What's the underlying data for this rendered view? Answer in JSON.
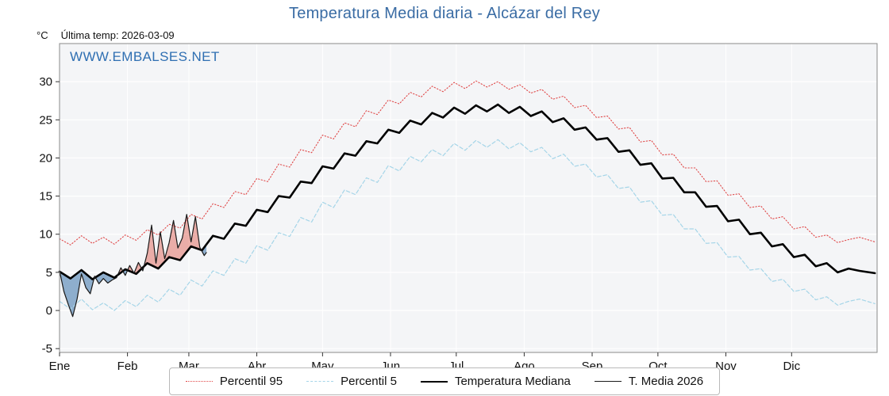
{
  "title": "Temperatura Media diaria - Alcázar del Rey",
  "header": {
    "unit": "°C",
    "last_temp": "Última temp: 2026-03-09"
  },
  "watermark": "WWW.EMBALSES.NET",
  "colors": {
    "title": "#3a6ca4",
    "watermark": "#2f6fb2",
    "plot_bg": "#f4f5f7",
    "grid": "#ffffff",
    "frame": "#8a8a8a",
    "tick": "#333333",
    "tick_label": "#111111"
  },
  "chart_data": {
    "type": "line",
    "title": "Temperatura Media diaria - Alcázar del Rey",
    "xlabel": "",
    "ylabel": "°C",
    "xlim": [
      1,
      374
    ],
    "ylim": [
      -5.5,
      35
    ],
    "yticks": [
      -5,
      0,
      5,
      10,
      15,
      20,
      25,
      30
    ],
    "xticks": {
      "labels": [
        "Ene",
        "Feb",
        "Mar",
        "Abr",
        "May",
        "Jun",
        "Jul",
        "Ago",
        "Sep",
        "Oct",
        "Nov",
        "Dic"
      ],
      "days": [
        1,
        32,
        60,
        91,
        121,
        152,
        182,
        213,
        244,
        274,
        305,
        335
      ]
    },
    "grid": true,
    "series": [
      {
        "name": "Percentil 95",
        "color": "#e04848",
        "style": "dotted",
        "width": 1.1,
        "x": [
          1,
          6,
          11,
          16,
          21,
          26,
          31,
          36,
          41,
          46,
          51,
          56,
          61,
          66,
          71,
          76,
          81,
          86,
          91,
          96,
          101,
          106,
          111,
          116,
          121,
          126,
          131,
          136,
          141,
          146,
          151,
          156,
          161,
          166,
          171,
          176,
          181,
          186,
          191,
          196,
          201,
          206,
          211,
          216,
          221,
          226,
          231,
          236,
          241,
          246,
          251,
          256,
          261,
          266,
          271,
          276,
          281,
          286,
          291,
          296,
          301,
          306,
          311,
          316,
          321,
          326,
          331,
          336,
          341,
          346,
          351,
          356,
          361,
          366,
          373
        ],
        "y": [
          9.4,
          8.6,
          9.8,
          8.8,
          9.6,
          8.7,
          9.9,
          9.2,
          10.6,
          9.9,
          11.3,
          10.8,
          12.6,
          12.0,
          14.0,
          13.5,
          15.6,
          15.2,
          17.3,
          16.9,
          19.2,
          18.8,
          21.1,
          20.7,
          23.0,
          22.5,
          24.6,
          24.1,
          26.2,
          25.7,
          27.6,
          27.1,
          28.6,
          28.0,
          29.4,
          28.7,
          29.9,
          29.1,
          30.1,
          29.3,
          30.0,
          29.0,
          29.6,
          28.5,
          29.0,
          27.7,
          28.1,
          26.6,
          26.9,
          25.3,
          25.5,
          23.8,
          24.0,
          22.1,
          22.3,
          20.4,
          20.5,
          18.7,
          18.7,
          16.9,
          17.0,
          15.1,
          15.3,
          13.5,
          13.7,
          12.0,
          12.3,
          10.7,
          11.0,
          9.6,
          9.9,
          8.9,
          9.3,
          9.6,
          9.0
        ]
      },
      {
        "name": "Percentil 5",
        "color": "#a5d5e8",
        "style": "dashed",
        "width": 1.2,
        "x": [
          1,
          6,
          11,
          16,
          21,
          26,
          31,
          36,
          41,
          46,
          51,
          56,
          61,
          66,
          71,
          76,
          81,
          86,
          91,
          96,
          101,
          106,
          111,
          116,
          121,
          126,
          131,
          136,
          141,
          146,
          151,
          156,
          161,
          166,
          171,
          176,
          181,
          186,
          191,
          196,
          201,
          206,
          211,
          216,
          221,
          226,
          231,
          236,
          241,
          246,
          251,
          256,
          261,
          266,
          271,
          276,
          281,
          286,
          291,
          296,
          301,
          306,
          311,
          316,
          321,
          326,
          331,
          336,
          341,
          346,
          351,
          356,
          361,
          366,
          373
        ],
        "y": [
          1.2,
          0.2,
          1.5,
          0.1,
          1.0,
          0.0,
          1.3,
          0.5,
          2.0,
          1.1,
          2.8,
          2.0,
          4.0,
          3.2,
          5.2,
          4.6,
          6.8,
          6.2,
          8.5,
          7.9,
          10.2,
          9.7,
          12.2,
          11.6,
          14.2,
          13.5,
          15.8,
          15.2,
          17.4,
          16.8,
          19.0,
          18.3,
          20.2,
          19.5,
          21.1,
          20.3,
          21.9,
          21.0,
          22.3,
          21.4,
          22.4,
          21.2,
          22.0,
          20.8,
          21.4,
          19.9,
          20.5,
          18.9,
          19.2,
          17.5,
          17.8,
          16.0,
          16.2,
          14.2,
          14.4,
          12.5,
          12.6,
          10.7,
          10.7,
          8.8,
          8.9,
          7.0,
          7.1,
          5.3,
          5.5,
          3.8,
          4.1,
          2.5,
          2.8,
          1.4,
          1.8,
          0.7,
          1.2,
          1.5,
          0.9
        ]
      },
      {
        "name": "Temperatura Mediana",
        "color": "#000000",
        "style": "solid",
        "width": 2.6,
        "x": [
          1,
          6,
          11,
          16,
          21,
          26,
          31,
          36,
          41,
          46,
          51,
          56,
          61,
          66,
          71,
          76,
          81,
          86,
          91,
          96,
          101,
          106,
          111,
          116,
          121,
          126,
          131,
          136,
          141,
          146,
          151,
          156,
          161,
          166,
          171,
          176,
          181,
          186,
          191,
          196,
          201,
          206,
          211,
          216,
          221,
          226,
          231,
          236,
          241,
          246,
          251,
          256,
          261,
          266,
          271,
          276,
          281,
          286,
          291,
          296,
          301,
          306,
          311,
          316,
          321,
          326,
          331,
          336,
          341,
          346,
          351,
          356,
          361,
          366,
          373
        ],
        "y": [
          5.1,
          4.2,
          5.3,
          4.1,
          5.0,
          4.3,
          5.4,
          4.8,
          6.2,
          5.5,
          7.0,
          6.6,
          8.4,
          7.9,
          9.8,
          9.4,
          11.4,
          11.1,
          13.2,
          12.9,
          15.0,
          14.8,
          16.9,
          16.7,
          18.9,
          18.6,
          20.6,
          20.3,
          22.2,
          21.9,
          23.7,
          23.3,
          24.9,
          24.4,
          25.9,
          25.3,
          26.6,
          25.8,
          26.9,
          26.1,
          27.0,
          25.9,
          26.7,
          25.5,
          26.1,
          24.7,
          25.2,
          23.7,
          24.0,
          22.4,
          22.6,
          20.8,
          21.0,
          19.1,
          19.3,
          17.3,
          17.4,
          15.5,
          15.5,
          13.6,
          13.7,
          11.7,
          11.9,
          10.0,
          10.2,
          8.4,
          8.7,
          7.0,
          7.3,
          5.8,
          6.2,
          5.0,
          5.5,
          5.2,
          4.9
        ]
      },
      {
        "name": "T. Media 2026",
        "color": "#1a1a1a",
        "style": "solid",
        "width": 1.2,
        "x": [
          1,
          3,
          5,
          7,
          9,
          11,
          13,
          15,
          17,
          19,
          21,
          23,
          25,
          27,
          29,
          31,
          33,
          35,
          37,
          39,
          41,
          43,
          45,
          47,
          49,
          51,
          53,
          55,
          57,
          59,
          61,
          63,
          65,
          67,
          68
        ],
        "y": [
          5.2,
          2.5,
          0.8,
          -0.8,
          1.5,
          4.8,
          3.0,
          2.2,
          4.5,
          3.5,
          4.2,
          3.6,
          4.0,
          4.3,
          5.6,
          4.6,
          5.9,
          4.9,
          6.3,
          5.2,
          7.5,
          11.2,
          6.2,
          10.3,
          6.8,
          8.9,
          11.8,
          8.2,
          9.5,
          12.6,
          9.0,
          12.3,
          8.3,
          7.2,
          7.6
        ]
      }
    ],
    "fills": [
      {
        "name": "above-median",
        "color": "#e0655a",
        "opacity": 0.5,
        "between": [
          "T. Media 2026",
          "Temperatura Mediana"
        ],
        "where": "above"
      },
      {
        "name": "below-median",
        "color": "#4a7fb0",
        "opacity": 0.6,
        "between": [
          "T. Media 2026",
          "Temperatura Mediana"
        ],
        "where": "below"
      }
    ],
    "legend": {
      "position": "bottom",
      "entries": [
        "Percentil 95",
        "Percentil 5",
        "Temperatura Mediana",
        "T. Media 2026"
      ]
    }
  }
}
